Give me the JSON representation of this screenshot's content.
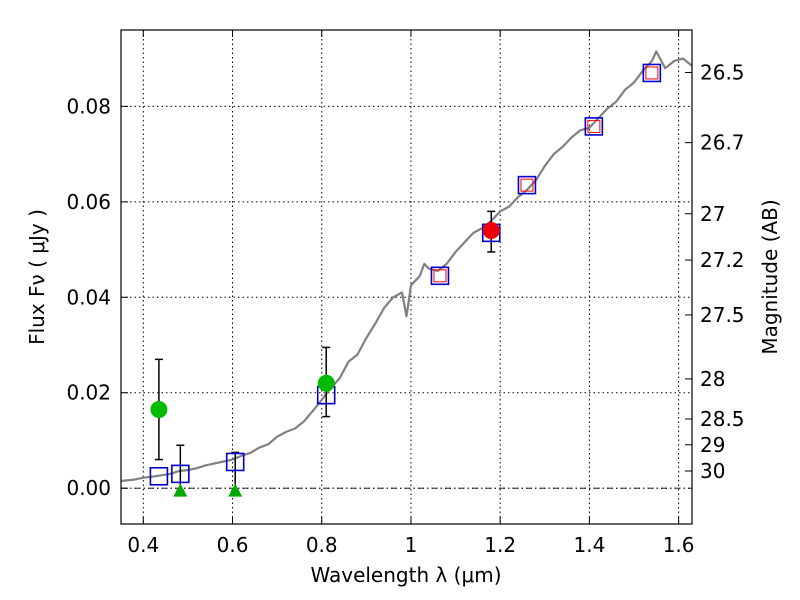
{
  "chart_data": {
    "type": "scatter",
    "xlabel": "Wavelength  λ (μm)",
    "ylabel": "Flux  Fν  ( μJy )",
    "ylabel_right": "Magnitude (AB)",
    "xlim": [
      0.35,
      1.63
    ],
    "ylim": [
      -0.0075,
      0.096
    ],
    "grid": true,
    "x_ticks": [
      {
        "value": 0.4,
        "label": "0.4"
      },
      {
        "value": 0.6,
        "label": "0.6"
      },
      {
        "value": 0.8,
        "label": "0.8"
      },
      {
        "value": 1.0,
        "label": "1"
      },
      {
        "value": 1.2,
        "label": "1.2"
      },
      {
        "value": 1.4,
        "label": "1.4"
      },
      {
        "value": 1.6,
        "label": "1.6"
      }
    ],
    "y_ticks": [
      {
        "value": 0.0,
        "label": "0.00"
      },
      {
        "value": 0.02,
        "label": "0.02"
      },
      {
        "value": 0.04,
        "label": "0.04"
      },
      {
        "value": 0.06,
        "label": "0.06"
      },
      {
        "value": 0.08,
        "label": "0.08"
      }
    ],
    "magnitude_ticks": [
      {
        "flux": 0.0871,
        "label": "26.5"
      },
      {
        "flux": 0.0724,
        "label": "26.7"
      },
      {
        "flux": 0.0575,
        "label": "27"
      },
      {
        "flux": 0.0478,
        "label": "27.2"
      },
      {
        "flux": 0.0363,
        "label": "27.5"
      },
      {
        "flux": 0.0229,
        "label": "28"
      },
      {
        "flux": 0.0145,
        "label": "28.5"
      },
      {
        "flux": 0.0091,
        "label": "29"
      },
      {
        "flux": 0.0036,
        "label": "30"
      }
    ],
    "series": [
      {
        "kind": "spectrum",
        "color": "#808080",
        "points": [
          [
            0.35,
            0.0015
          ],
          [
            0.38,
            0.0018
          ],
          [
            0.4,
            0.0022
          ],
          [
            0.42,
            0.0024
          ],
          [
            0.44,
            0.0027
          ],
          [
            0.46,
            0.003
          ],
          [
            0.48,
            0.0036
          ],
          [
            0.5,
            0.0038
          ],
          [
            0.52,
            0.0042
          ],
          [
            0.54,
            0.0048
          ],
          [
            0.56,
            0.0052
          ],
          [
            0.58,
            0.0056
          ],
          [
            0.6,
            0.006
          ],
          [
            0.62,
            0.0068
          ],
          [
            0.64,
            0.0074
          ],
          [
            0.66,
            0.0085
          ],
          [
            0.68,
            0.0092
          ],
          [
            0.7,
            0.0108
          ],
          [
            0.72,
            0.0118
          ],
          [
            0.74,
            0.0125
          ],
          [
            0.76,
            0.014
          ],
          [
            0.78,
            0.0162
          ],
          [
            0.8,
            0.0185
          ],
          [
            0.82,
            0.021
          ],
          [
            0.84,
            0.023
          ],
          [
            0.86,
            0.0265
          ],
          [
            0.88,
            0.028
          ],
          [
            0.9,
            0.0315
          ],
          [
            0.92,
            0.0345
          ],
          [
            0.94,
            0.0378
          ],
          [
            0.96,
            0.04
          ],
          [
            0.98,
            0.041
          ],
          [
            0.99,
            0.036
          ],
          [
            1.0,
            0.0425
          ],
          [
            1.02,
            0.0445
          ],
          [
            1.03,
            0.047
          ],
          [
            1.04,
            0.046
          ],
          [
            1.06,
            0.0455
          ],
          [
            1.08,
            0.047
          ],
          [
            1.1,
            0.0495
          ],
          [
            1.12,
            0.0515
          ],
          [
            1.14,
            0.0535
          ],
          [
            1.16,
            0.0545
          ],
          [
            1.18,
            0.056
          ],
          [
            1.2,
            0.058
          ],
          [
            1.22,
            0.059
          ],
          [
            1.24,
            0.061
          ],
          [
            1.26,
            0.0625
          ],
          [
            1.28,
            0.0645
          ],
          [
            1.3,
            0.0675
          ],
          [
            1.32,
            0.07
          ],
          [
            1.34,
            0.0715
          ],
          [
            1.36,
            0.0735
          ],
          [
            1.38,
            0.075
          ],
          [
            1.4,
            0.0755
          ],
          [
            1.42,
            0.0775
          ],
          [
            1.44,
            0.0795
          ],
          [
            1.46,
            0.081
          ],
          [
            1.48,
            0.0835
          ],
          [
            1.5,
            0.085
          ],
          [
            1.52,
            0.0875
          ],
          [
            1.54,
            0.0895
          ],
          [
            1.55,
            0.0915
          ],
          [
            1.57,
            0.088
          ],
          [
            1.59,
            0.0895
          ],
          [
            1.61,
            0.09
          ],
          [
            1.63,
            0.0885
          ]
        ]
      },
      {
        "kind": "model-photometry",
        "marker": "square",
        "color": "#0000cc",
        "points": [
          [
            0.435,
            0.0025
          ],
          [
            0.483,
            0.003
          ],
          [
            0.606,
            0.0055
          ],
          [
            0.81,
            0.0195
          ],
          [
            1.065,
            0.0445
          ],
          [
            1.18,
            0.0535
          ],
          [
            1.26,
            0.0635
          ],
          [
            1.41,
            0.0758
          ],
          [
            1.54,
            0.087
          ]
        ]
      },
      {
        "kind": "observed-photometry",
        "marker": "circle",
        "color": "#00bb00",
        "points": [
          [
            0.435,
            0.0165
          ],
          [
            0.81,
            0.022
          ]
        ],
        "errors": [
          [
            0.006,
            0.027
          ],
          [
            0.015,
            0.0295
          ]
        ]
      },
      {
        "kind": "observed-photometry",
        "marker": "circle",
        "color": "#ee0000",
        "points": [
          [
            1.18,
            0.054
          ]
        ],
        "errors": [
          [
            0.0495,
            0.058
          ]
        ]
      },
      {
        "kind": "upper-limits",
        "marker": "triangle",
        "color": "#00aa00",
        "points": [
          [
            0.483,
            -0.0005
          ],
          [
            0.606,
            -0.0005
          ]
        ],
        "errors": [
          [
            -0.0005,
            0.009
          ],
          [
            -0.0005,
            0.0075
          ]
        ]
      },
      {
        "kind": "overlay",
        "marker": "square-small",
        "color": "#ff0000",
        "points": [
          [
            1.065,
            0.0445
          ],
          [
            1.26,
            0.0635
          ],
          [
            1.41,
            0.0758
          ],
          [
            1.54,
            0.087
          ]
        ]
      }
    ]
  }
}
